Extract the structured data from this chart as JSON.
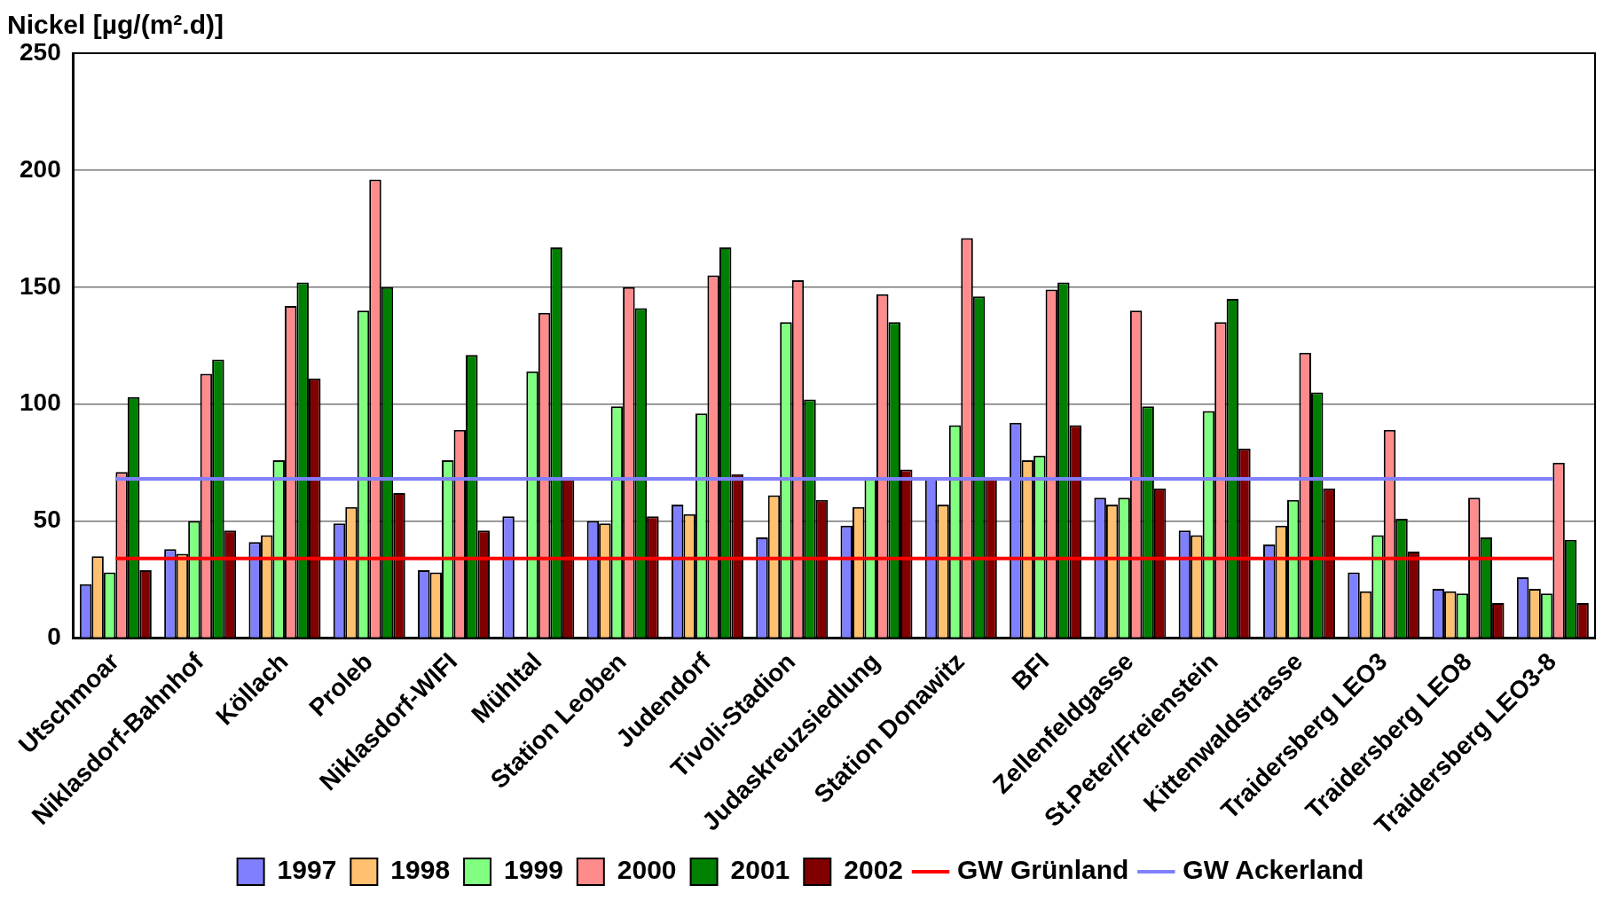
{
  "chart_data": {
    "type": "bar",
    "title": "Nickel [µg/(m².d)]",
    "categories": [
      "Utschmoar",
      "Niklasdorf-Bahnhof",
      "Köllach",
      "Proleb",
      "Niklasdorf-WIFI",
      "Mühltal",
      "Station Leoben",
      "Judendorf",
      "Tivoli-Stadion",
      "Judaskreuzsiedlung",
      "Station Donawitz",
      "BFI",
      "Zellenfeldgasse",
      "St.Peter/Freienstein",
      "Kittenwaldstrasse",
      "Traidersberg LEO3",
      "Traidersberg LEO8",
      "Traidersberg LEO3-8"
    ],
    "series": [
      {
        "name": "1997",
        "color": "#8080ff",
        "values": [
          23,
          38,
          41,
          49,
          29,
          52,
          50,
          57,
          43,
          48,
          68,
          92,
          60,
          46,
          40,
          28,
          21,
          26
        ]
      },
      {
        "name": "1998",
        "color": "#ffc070",
        "values": [
          35,
          36,
          44,
          56,
          28,
          null,
          49,
          53,
          61,
          56,
          57,
          76,
          57,
          44,
          48,
          20,
          20,
          21
        ]
      },
      {
        "name": "1999",
        "color": "#80ff80",
        "values": [
          28,
          50,
          76,
          140,
          76,
          114,
          99,
          96,
          135,
          68,
          91,
          78,
          60,
          97,
          59,
          44,
          19,
          19
        ]
      },
      {
        "name": "2000",
        "color": "#ff8c8c",
        "values": [
          71,
          113,
          142,
          196,
          89,
          139,
          150,
          155,
          153,
          147,
          171,
          149,
          140,
          135,
          122,
          89,
          60,
          75
        ]
      },
      {
        "name": "2001",
        "color": "#008000",
        "values": [
          103,
          119,
          152,
          150,
          121,
          167,
          141,
          167,
          102,
          135,
          146,
          152,
          99,
          145,
          105,
          51,
          43,
          42
        ]
      },
      {
        "name": "2002",
        "color": "#800000",
        "values": [
          29,
          46,
          111,
          62,
          46,
          68,
          52,
          70,
          59,
          72,
          68,
          91,
          64,
          81,
          64,
          37,
          15,
          15
        ]
      },
      {
        "name": "GW Grünland",
        "type": "line",
        "color": "#ff0000",
        "values": [
          34,
          34,
          34,
          34,
          34,
          34,
          34,
          34,
          34,
          34,
          34,
          34,
          34,
          34,
          34,
          34,
          34,
          34
        ]
      },
      {
        "name": "GW Ackerland",
        "type": "line",
        "color": "#8080ff",
        "values": [
          68,
          68,
          68,
          68,
          68,
          68,
          68,
          68,
          68,
          68,
          68,
          68,
          68,
          68,
          68,
          68,
          68,
          68
        ]
      }
    ],
    "ylim": [
      0,
      250
    ],
    "yticks": [
      0,
      50,
      100,
      150,
      200,
      250
    ],
    "grid": "y",
    "legend": "bottom",
    "marker": "none"
  }
}
